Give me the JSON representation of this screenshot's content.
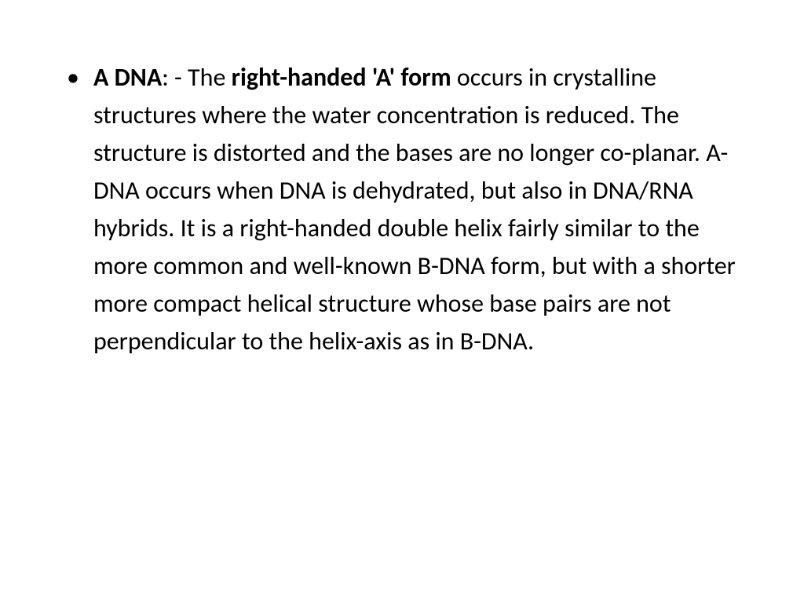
{
  "slide": {
    "bullet_char": "•",
    "segments": {
      "s1": "A DNA",
      "s2": ": - The ",
      "s3": "right-handed 'A' form",
      "s4": " occurs in crystalline structures where the water concentration is reduced. The structure is distorted and the bases are no longer co-planar. A-DNA occurs when DNA is dehydrated, but also in DNA/RNA hybrids. It is a right-handed double helix fairly similar to the more common and well-known B-DNA form, but with a shorter more compact helical structure whose base pairs are not perpendicular to the helix-axis as in B-DNA."
    }
  },
  "styling": {
    "background_color": "#ffffff",
    "text_color": "#000000",
    "font_size_pt": 32,
    "line_height": 1.5,
    "font_family": "Calibri"
  }
}
